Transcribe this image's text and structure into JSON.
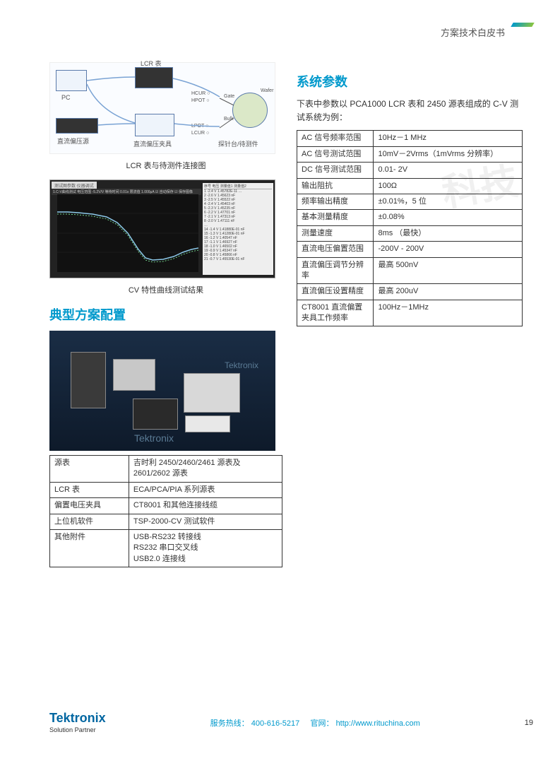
{
  "header": {
    "title": "方案技术白皮书"
  },
  "watermark": "科技",
  "left": {
    "diagram1": {
      "labels": {
        "lcr": "LCR 表",
        "pc": "PC",
        "bias": "直流偏压源",
        "fixture": "直流偏压夹具",
        "probe": "探针台/待测件",
        "hcur": "HCUR ○",
        "hpot": "HPOT ○",
        "lpot": "LPOT ○",
        "lcur": "LCUR ○",
        "gate": "Gate",
        "bulk": "Bulk",
        "wafer": "Wafer"
      },
      "caption": "LCR 表与待测件连接图"
    },
    "chart": {
      "caption": "CV 特性曲线测试结果",
      "top_tabs": "测试图参数  仪器调试",
      "toolbar": "1.C-V曲线测试   电压范围  -5.2V/V   等待时间  0.01s   限流值  1.000μA   ☑ 自动保存  ☑ 保存图像",
      "legend": "序号  电压  测量值1  测量值2",
      "curve_color": "#8cc8e8",
      "curve_points": [
        [
          0,
          25
        ],
        [
          15,
          25
        ],
        [
          30,
          26
        ],
        [
          50,
          28
        ],
        [
          70,
          32
        ],
        [
          85,
          40
        ],
        [
          100,
          55
        ],
        [
          115,
          78
        ],
        [
          125,
          90
        ],
        [
          135,
          93
        ],
        [
          150,
          92
        ],
        [
          165,
          88
        ],
        [
          178,
          82
        ],
        [
          190,
          78
        ],
        [
          200,
          76
        ]
      ],
      "side_rows": [
        "1  -2.4 V  1.45782E-11  …",
        "2  -2.6 V  1.45623   nF",
        "3  -2.5 V  1.45522   nF",
        "4  -2.4 V  1.45403   nF",
        "5  -2.3 V  1.45235   nF",
        "6  -2.2 V  1.47701   nF",
        "7  -2.1 V  1.47313   nF",
        "8  -2.0 V  1.47111   nF",
        "…",
        "14 -1.4 V  1.41880E-01 nF",
        "15 -1.3 V  1.41280E-01 nF",
        "16 -1.2 V  1.40547   nF",
        "17 -1.1 V  1.46927   nF",
        "18 -1.0 V  1.46502   nF",
        "19 -0.9 V  1.45347   nF",
        "20 -0.8 V  1.45866   nF",
        "21 -0.7 V  1.45530E-01 nF"
      ]
    },
    "section_title": "典型方案配置",
    "photo_watermark": "Tektronix",
    "config_table": [
      [
        "源表",
        "吉时利 2450/2460/2461 源表及 2601/2602 源表"
      ],
      [
        "LCR 表",
        "ECA/PCA/PIA 系列源表"
      ],
      [
        "偏置电压夹具",
        "CT8001 和其他连接线缆"
      ],
      [
        "上位机软件",
        "TSP-2000-CV  测试软件"
      ],
      [
        "其他附件",
        "USB-RS232 转接线\nRS232 串口交叉线\nUSB2.0 连接线"
      ]
    ]
  },
  "right": {
    "section_title": "系统参数",
    "intro": "下表中参数以 PCA1000 LCR 表和 2450  源表组成的 C-V 测试系统为例：",
    "params_table": [
      [
        "AC 信号频率范围",
        "10Hz－1 MHz"
      ],
      [
        "AC 信号测试范围",
        "10mV－2Vrms（1mVrms 分辨率）"
      ],
      [
        "DC 信号测试范围",
        "0.01- 2V"
      ],
      [
        "输出阻抗",
        "100Ω"
      ],
      [
        "频率输出精度",
        "±0.01%，5 位"
      ],
      [
        "基本测量精度",
        "±0.08%"
      ],
      [
        "测量速度",
        "8ms （最快）"
      ],
      [
        "直流电压偏置范围",
        "-200V - 200V"
      ],
      [
        "直流偏压调节分辨率",
        "最高 500nV"
      ],
      [
        "直流偏压设置精度",
        "最高 200uV"
      ],
      [
        "CT8001 直流偏置夹具工作频率",
        "100Hz－1MHz"
      ]
    ]
  },
  "footer": {
    "logo": "Tektronix",
    "logo_sub": "Solution Partner",
    "hotline_label": "服务热线：",
    "hotline": "400-616-5217",
    "site_label": "官网：",
    "site": "http://www.rituchina.com",
    "page": "19"
  }
}
